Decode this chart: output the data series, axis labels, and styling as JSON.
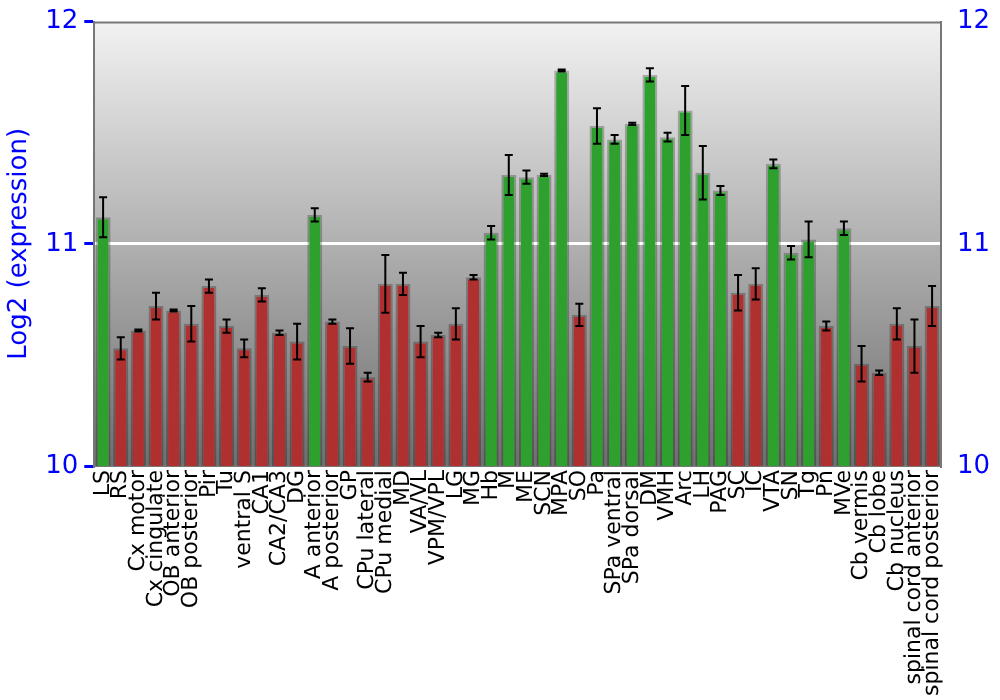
{
  "chart_data": {
    "type": "bar",
    "ylabel": "Log2 (expression)",
    "categories": [
      "LS",
      "RS",
      "Cx motor",
      "Cx cingulate",
      "OB anterior",
      "OB posterior",
      "Pir",
      "Tu",
      "ventral S",
      "CA1",
      "CA2/CA3",
      "DG",
      "A anterior",
      "A posterior",
      "GP",
      "CPu lateral",
      "CPu medial",
      "MD",
      "VA/VL",
      "VPM/VPL",
      "LG",
      "MG",
      "Hb",
      "M",
      "ME",
      "SCN",
      "MPA",
      "SO",
      "Pa",
      "SPa ventral",
      "SPa dorsal",
      "DM",
      "VMH",
      "Arc",
      "LH",
      "PAG",
      "SC",
      "IC",
      "VTA",
      "SN",
      "Tg",
      "Pn",
      "MVe",
      "Cb vermis",
      "Cb lobe",
      "Cb nucleus",
      "spinal cord anterior",
      "spinal cord posterior"
    ],
    "values": [
      11.12,
      10.53,
      10.61,
      10.72,
      10.7,
      10.64,
      10.81,
      10.63,
      10.53,
      10.77,
      10.6,
      10.56,
      11.13,
      10.65,
      10.54,
      10.4,
      10.82,
      10.82,
      10.56,
      10.59,
      10.64,
      10.85,
      11.05,
      11.31,
      11.3,
      11.31,
      11.78,
      10.68,
      11.53,
      11.47,
      11.54,
      11.76,
      11.48,
      11.6,
      11.32,
      11.24,
      10.78,
      10.82,
      11.36,
      10.96,
      11.02,
      10.63,
      11.07,
      10.46,
      10.42,
      10.64,
      10.54,
      10.72
    ],
    "errors": [
      0.09,
      0.05,
      0.005,
      0.06,
      0.005,
      0.08,
      0.03,
      0.03,
      0.04,
      0.03,
      0.01,
      0.08,
      0.03,
      0.01,
      0.08,
      0.02,
      0.13,
      0.05,
      0.07,
      0.01,
      0.07,
      0.01,
      0.03,
      0.09,
      0.03,
      0.005,
      0.005,
      0.05,
      0.08,
      0.02,
      0.005,
      0.03,
      0.02,
      0.11,
      0.12,
      0.02,
      0.08,
      0.07,
      0.02,
      0.03,
      0.08,
      0.02,
      0.03,
      0.08,
      0.01,
      0.07,
      0.12,
      0.09
    ],
    "colors": [
      "#2ea02e",
      "#b03030",
      "#b03030",
      "#b03030",
      "#b03030",
      "#b03030",
      "#b03030",
      "#b03030",
      "#b03030",
      "#b03030",
      "#b03030",
      "#b03030",
      "#2ea02e",
      "#b03030",
      "#b03030",
      "#b03030",
      "#b03030",
      "#b03030",
      "#b03030",
      "#b03030",
      "#b03030",
      "#b03030",
      "#2ea02e",
      "#2ea02e",
      "#2ea02e",
      "#2ea02e",
      "#2ea02e",
      "#b03030",
      "#2ea02e",
      "#2ea02e",
      "#2ea02e",
      "#2ea02e",
      "#2ea02e",
      "#2ea02e",
      "#2ea02e",
      "#2ea02e",
      "#b03030",
      "#b03030",
      "#2ea02e",
      "#2ea02e",
      "#2ea02e",
      "#b03030",
      "#2ea02e",
      "#b03030",
      "#b03030",
      "#b03030",
      "#b03030",
      "#b03030"
    ],
    "ylim": [
      10,
      12
    ],
    "yticks": [
      10,
      11,
      12
    ],
    "y2lim": [
      10,
      12
    ],
    "y2ticks": [
      10,
      11,
      12
    ],
    "grid": "y",
    "legend": false
  }
}
